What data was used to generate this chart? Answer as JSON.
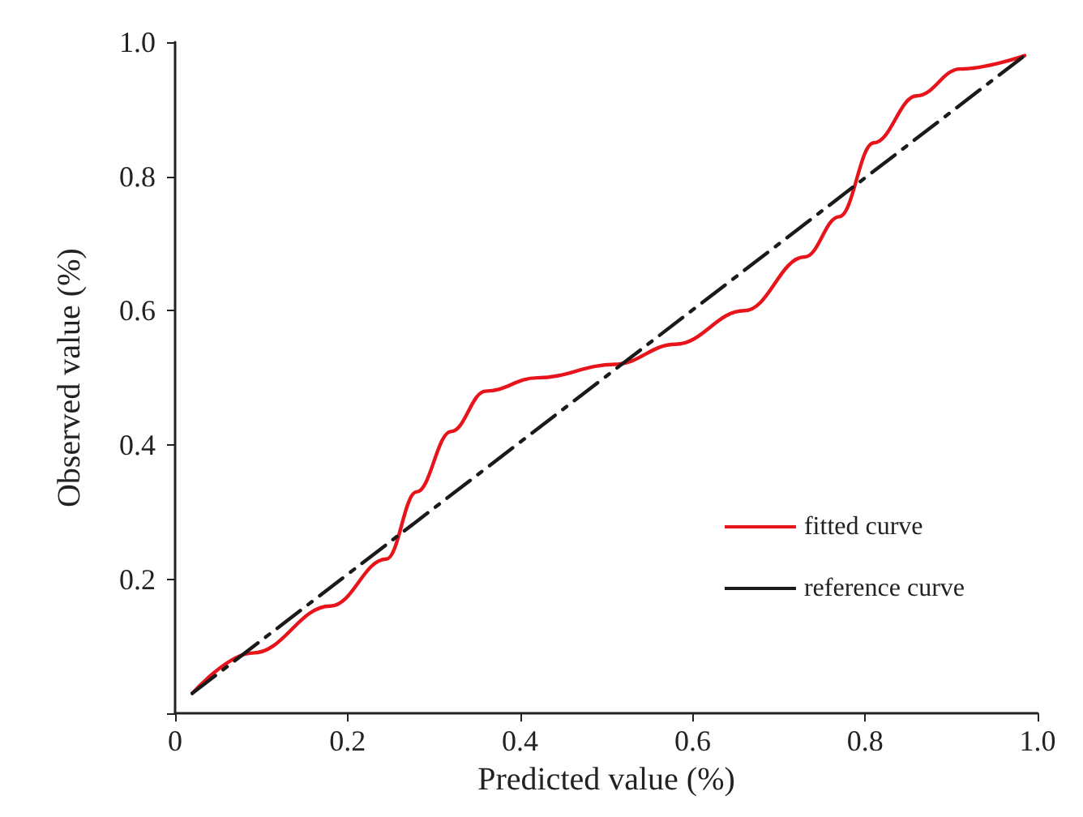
{
  "chart_data": {
    "type": "line",
    "xlabel": "Predicted value (%)",
    "ylabel": "Observed value (%)",
    "xlim": [
      0,
      1.0
    ],
    "ylim": [
      0,
      1.0
    ],
    "xticks": [
      0,
      0.2,
      0.4,
      0.6,
      0.8,
      {
        "value": 1.0,
        "label": "1.0"
      }
    ],
    "yticks": [
      {
        "value": 0,
        "label": null
      },
      0.2,
      0.4,
      0.6,
      0.8,
      {
        "value": 1.0,
        "label": "1.0"
      }
    ],
    "grid": false,
    "legend": "bottom right",
    "marker": "none",
    "series": [
      {
        "name": "fitted curve",
        "color": "#e8141b",
        "line_style": "solid",
        "x": [
          0.02,
          0.09,
          0.18,
          0.245,
          0.28,
          0.32,
          0.36,
          0.42,
          0.51,
          0.58,
          0.66,
          0.73,
          0.77,
          0.81,
          0.86,
          0.91,
          0.985
        ],
        "values": [
          0.03,
          0.09,
          0.16,
          0.23,
          0.33,
          0.42,
          0.48,
          0.5,
          0.52,
          0.55,
          0.6,
          0.68,
          0.74,
          0.85,
          0.92,
          0.96,
          0.98
        ]
      },
      {
        "name": "reference curve",
        "color": "#1a1a1a",
        "line_style": "dashed",
        "x": [
          0.02,
          0.985
        ],
        "values": [
          0.03,
          0.98
        ]
      }
    ]
  }
}
